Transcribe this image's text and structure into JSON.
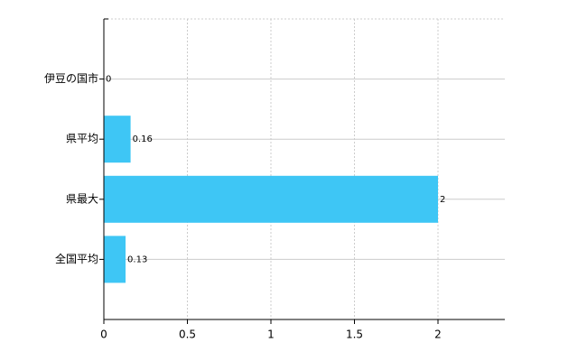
{
  "chart_data": {
    "type": "hbar",
    "categories": [
      "伊豆の国市",
      "県平均",
      "県最大",
      "全国平均"
    ],
    "values": [
      0,
      0.16,
      2,
      0.13
    ],
    "color": "#3ec6f5",
    "xlim": [
      0,
      2.4
    ],
    "xticks": [
      0,
      0.5,
      1,
      1.5,
      2
    ],
    "grid": true
  }
}
